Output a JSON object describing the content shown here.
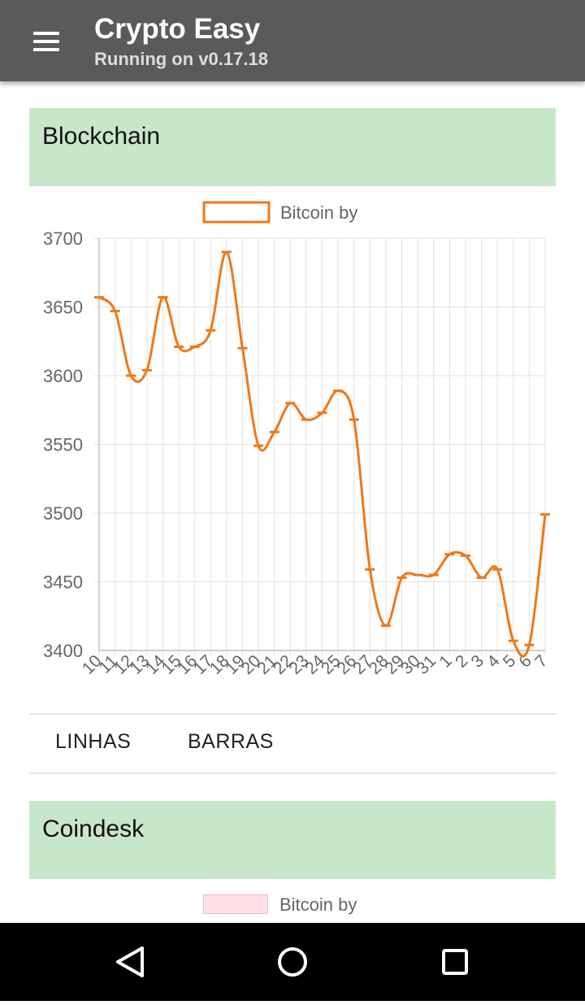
{
  "app": {
    "title": "Crypto Easy",
    "subtitle": "Running on v0.17.18"
  },
  "cards": [
    {
      "title": "Blockchain",
      "tabs": [
        "LINHAS",
        "BARRAS"
      ]
    },
    {
      "title": "Coindesk",
      "legend": "Bitcoin by"
    }
  ],
  "chart_data": {
    "type": "line",
    "legend": "Bitcoin by",
    "legend_position": "top",
    "categories": [
      "10",
      "11",
      "12",
      "13",
      "14",
      "15",
      "16",
      "17",
      "18",
      "19",
      "20",
      "21",
      "22",
      "23",
      "24",
      "25",
      "26",
      "27",
      "28",
      "29",
      "30",
      "31",
      "1",
      "2",
      "3",
      "4",
      "5",
      "6",
      "7"
    ],
    "series": [
      {
        "name": "Bitcoin by",
        "color": "#f07818",
        "values": [
          3657,
          3647,
          3600,
          3604,
          3657,
          3621,
          3621,
          3633,
          3690,
          3620,
          3549,
          3559,
          3580,
          3568,
          3573,
          3589,
          3568,
          3459,
          3418,
          3453,
          3455,
          3455,
          3470,
          3469,
          3453,
          3459,
          3407,
          3404,
          3499
        ]
      }
    ],
    "ylim": [
      3400,
      3700
    ],
    "yticks": [
      "3700",
      "3650",
      "3600",
      "3550",
      "3500",
      "3450",
      "3400"
    ],
    "grid": true
  },
  "colors": {
    "appbar": "#5a5a5a",
    "card_header": "#c8e6c9",
    "line": "#f07818",
    "legend2_fill": "#ffdfe5"
  },
  "icons": {
    "menu": "hamburger-icon",
    "back": "triangle-back-icon",
    "home": "circle-home-icon",
    "recents": "square-recents-icon"
  }
}
